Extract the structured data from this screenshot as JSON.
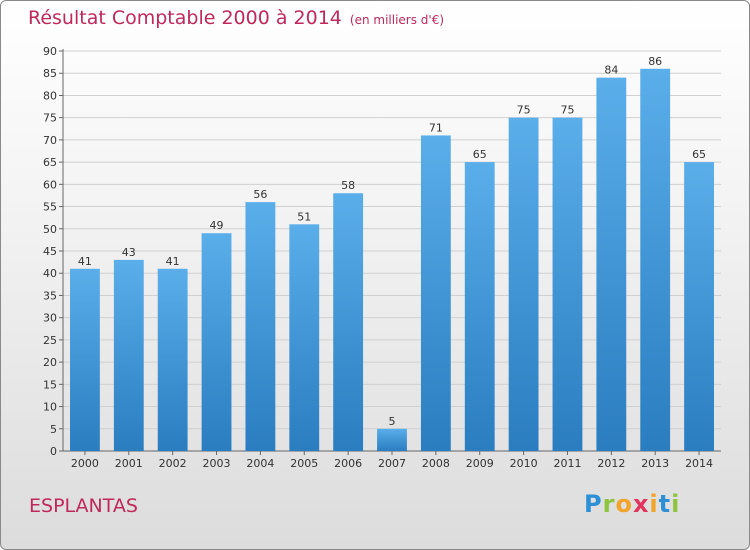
{
  "header": {
    "title": "Résultat Comptable 2000 à 2014",
    "subtitle": "(en milliers d'€)"
  },
  "footer": {
    "commune": "ESPLANTAS",
    "logo_text": "Proxiti"
  },
  "colors": {
    "title": "#c0285a",
    "bar_top": "#5aaeea",
    "bar_bottom": "#2a7dbf"
  },
  "chart_data": {
    "type": "bar",
    "title": "Résultat Comptable 2000 à 2014",
    "subtitle": "(en milliers d'€)",
    "categories": [
      "2000",
      "2001",
      "2002",
      "2003",
      "2004",
      "2005",
      "2006",
      "2007",
      "2008",
      "2009",
      "2010",
      "2011",
      "2012",
      "2013",
      "2014"
    ],
    "values": [
      41,
      43,
      41,
      49,
      56,
      51,
      58,
      5,
      71,
      65,
      75,
      75,
      84,
      86,
      65
    ],
    "ylim": [
      0,
      90
    ],
    "yticks": [
      0,
      5,
      10,
      15,
      20,
      25,
      30,
      35,
      40,
      45,
      50,
      55,
      60,
      65,
      70,
      75,
      80,
      85,
      90
    ],
    "grid": true,
    "xlabel": "",
    "ylabel": ""
  }
}
